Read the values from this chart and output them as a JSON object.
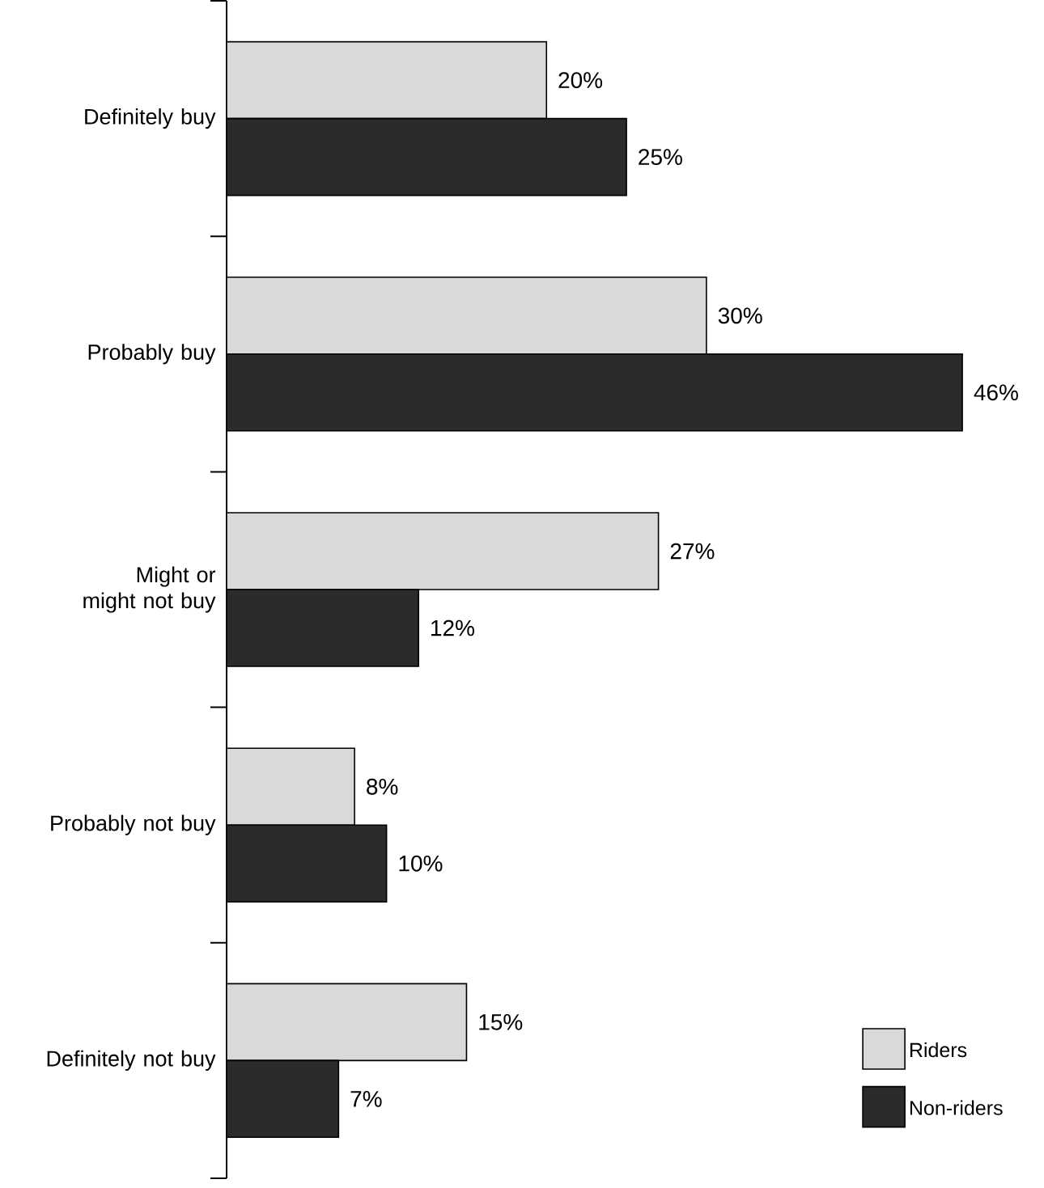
{
  "chart_data": {
    "type": "bar",
    "orientation": "horizontal",
    "categories": [
      "Definitely buy",
      "Probably buy",
      "Might or might not buy",
      "Probably not buy",
      "Definitely not buy"
    ],
    "series": [
      {
        "name": "Riders",
        "color": "#d9d9d9",
        "values": [
          20,
          30,
          27,
          8,
          15
        ],
        "value_labels": [
          "20%",
          "30%",
          "27%",
          "8%",
          "15%"
        ]
      },
      {
        "name": "Non-riders",
        "color": "#2b2b2b",
        "values": [
          25,
          46,
          12,
          10,
          7
        ],
        "value_labels": [
          "25%",
          "46%",
          "12%",
          "10%",
          "7%"
        ]
      }
    ],
    "legend": "bottom right"
  }
}
